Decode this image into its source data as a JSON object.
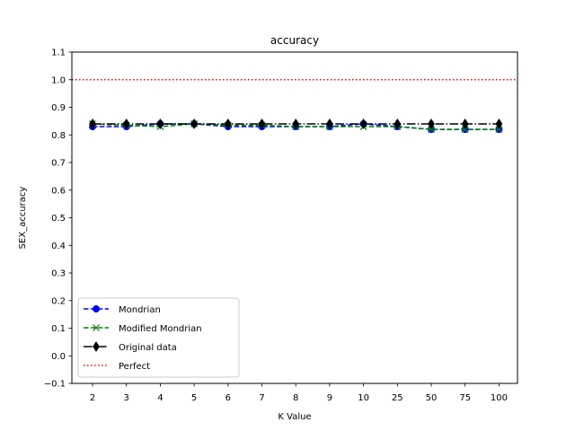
{
  "chart_data": {
    "type": "line",
    "title": "accuracy",
    "xlabel": "K Value",
    "ylabel": "SEX_accuracy",
    "categories": [
      "2",
      "3",
      "4",
      "5",
      "6",
      "7",
      "8",
      "9",
      "10",
      "25",
      "50",
      "75",
      "100"
    ],
    "ylim": [
      -0.1,
      1.1
    ],
    "yticks": [
      "−0.1",
      "0.0",
      "0.1",
      "0.2",
      "0.3",
      "0.4",
      "0.5",
      "0.6",
      "0.7",
      "0.8",
      "0.9",
      "1.0",
      "1.1"
    ],
    "grid": false,
    "legend_position": "bottom-left",
    "series": [
      {
        "name": "Mondrian",
        "color": "#0000ff",
        "line_style": "dashed",
        "marker": "circle",
        "values": [
          0.83,
          0.83,
          0.84,
          0.84,
          0.83,
          0.83,
          0.83,
          0.83,
          0.84,
          0.83,
          0.82,
          0.82,
          0.82
        ]
      },
      {
        "name": "Modified Mondrian",
        "color": "#008000",
        "line_style": "dashed",
        "marker": "x",
        "values": [
          0.84,
          0.835,
          0.83,
          0.84,
          0.835,
          0.835,
          0.83,
          0.83,
          0.83,
          0.83,
          0.82,
          0.82,
          0.82
        ]
      },
      {
        "name": "Original data",
        "color": "#000000",
        "line_style": "dashdot",
        "marker": "diamond",
        "values": [
          0.84,
          0.84,
          0.84,
          0.84,
          0.84,
          0.84,
          0.84,
          0.84,
          0.84,
          0.84,
          0.84,
          0.84,
          0.84
        ]
      }
    ],
    "reference_lines": [
      {
        "name": "Perfect",
        "color": "#ff0000",
        "line_style": "dotted",
        "value": 1.0
      }
    ]
  }
}
